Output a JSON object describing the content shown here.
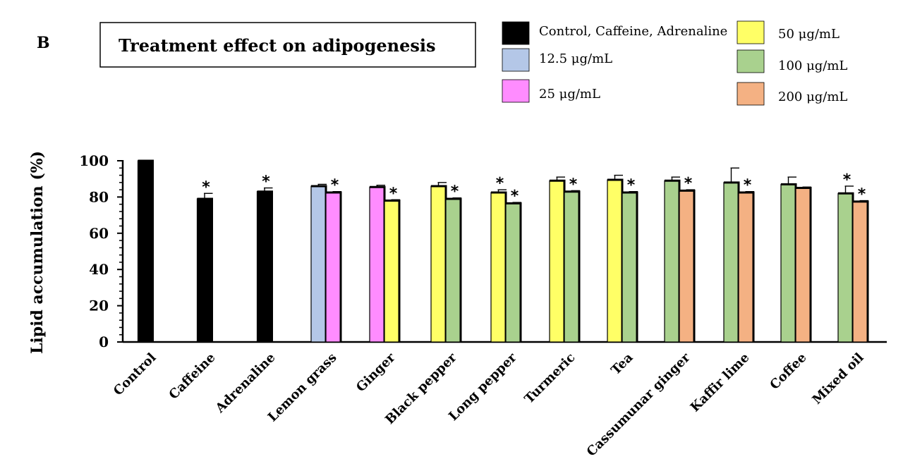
{
  "panel_label": "B",
  "chart_data": {
    "type": "bar",
    "title": "Treatment effect on adipogenesis",
    "ylabel": "Lipid accumulation (%)",
    "xlabel": "",
    "ylim": [
      0,
      100
    ],
    "yticks": [
      0,
      20,
      40,
      60,
      80,
      100
    ],
    "legend": [
      {
        "label": "Control, Caffeine, Adrenaline",
        "color": "#000000"
      },
      {
        "label": "12.5 μg/mL",
        "color": "#b4c7e7"
      },
      {
        "label": "25 μg/mL",
        "color": "#ff8cff"
      },
      {
        "label": "50 μg/mL",
        "color": "#ffff66"
      },
      {
        "label": "100 μg/mL",
        "color": "#a9d18e"
      },
      {
        "label": "200 μg/mL",
        "color": "#f4b183"
      }
    ],
    "significance_marker": "*",
    "categories": [
      {
        "name": "Control",
        "bars": [
          {
            "series": "Control, Caffeine, Adrenaline",
            "value": 100,
            "error": 0,
            "sig": false
          }
        ]
      },
      {
        "name": "Caffeine",
        "bars": [
          {
            "series": "Control, Caffeine, Adrenaline",
            "value": 79,
            "error": 3,
            "sig": true
          }
        ]
      },
      {
        "name": "Adrenaline",
        "bars": [
          {
            "series": "Control, Caffeine, Adrenaline",
            "value": 83,
            "error": 2,
            "sig": true
          }
        ]
      },
      {
        "name": "Lemon grass",
        "bars": [
          {
            "series": "12.5 μg/mL",
            "value": 86,
            "error": 1,
            "sig": false
          },
          {
            "series": "25 μg/mL",
            "value": 82.5,
            "error": 0.5,
            "sig": true
          }
        ]
      },
      {
        "name": "Ginger",
        "bars": [
          {
            "series": "25 μg/mL",
            "value": 85.5,
            "error": 1,
            "sig": false
          },
          {
            "series": "50 μg/mL",
            "value": 78,
            "error": 0.5,
            "sig": true
          }
        ]
      },
      {
        "name": "Black pepper",
        "bars": [
          {
            "series": "50 μg/mL",
            "value": 86,
            "error": 2,
            "sig": false
          },
          {
            "series": "100 μg/mL",
            "value": 79,
            "error": 0.5,
            "sig": true
          }
        ]
      },
      {
        "name": "Long pepper",
        "bars": [
          {
            "series": "50 μg/mL",
            "value": 82.5,
            "error": 1.5,
            "sig": true
          },
          {
            "series": "100 μg/mL",
            "value": 76.5,
            "error": 0.5,
            "sig": true
          }
        ]
      },
      {
        "name": "Turmeric",
        "bars": [
          {
            "series": "50 μg/mL",
            "value": 89,
            "error": 2,
            "sig": false
          },
          {
            "series": "100 μg/mL",
            "value": 83,
            "error": 0.5,
            "sig": true
          }
        ]
      },
      {
        "name": "Tea",
        "bars": [
          {
            "series": "50 μg/mL",
            "value": 89.5,
            "error": 2.5,
            "sig": false
          },
          {
            "series": "100 μg/mL",
            "value": 82.5,
            "error": 0.5,
            "sig": true
          }
        ]
      },
      {
        "name": "Cassumunar ginger",
        "bars": [
          {
            "series": "100 μg/mL",
            "value": 89,
            "error": 2,
            "sig": false
          },
          {
            "series": "200 μg/mL",
            "value": 83.5,
            "error": 0.5,
            "sig": true
          }
        ]
      },
      {
        "name": "Kaffir lime",
        "bars": [
          {
            "series": "100 μg/mL",
            "value": 88,
            "error": 8,
            "sig": false
          },
          {
            "series": "200 μg/mL",
            "value": 82.5,
            "error": 0.5,
            "sig": true
          }
        ]
      },
      {
        "name": "Coffee",
        "bars": [
          {
            "series": "100 μg/mL",
            "value": 87,
            "error": 4,
            "sig": false
          },
          {
            "series": "200 μg/mL",
            "value": 85,
            "error": 0.5,
            "sig": false
          }
        ]
      },
      {
        "name": "Mixed oil",
        "bars": [
          {
            "series": "100 μg/mL",
            "value": 82,
            "error": 4,
            "sig": true
          },
          {
            "series": "200 μg/mL",
            "value": 77.5,
            "error": 0.5,
            "sig": true
          }
        ]
      }
    ]
  }
}
